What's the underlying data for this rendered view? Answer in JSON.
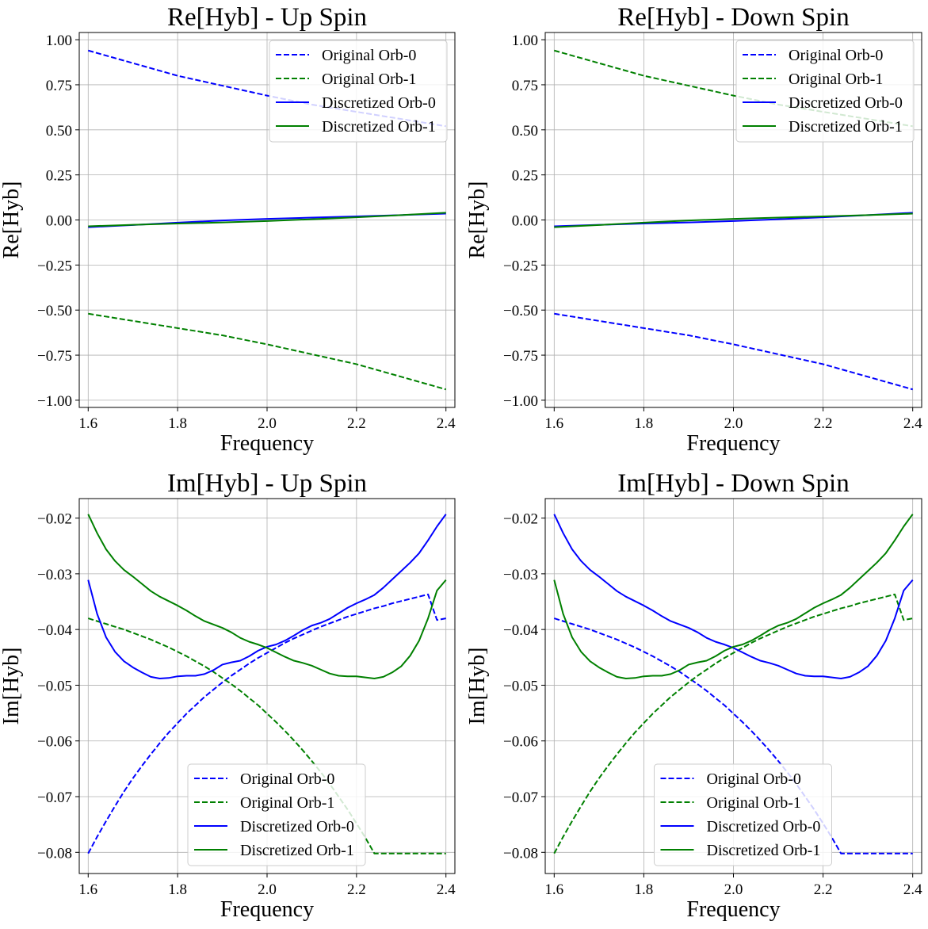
{
  "chart_data": [
    {
      "type": "line",
      "title": "Re[Hyb] - Up Spin",
      "xlabel": "Frequency",
      "ylabel": "Re[Hyb]",
      "xlim": [
        1.58,
        2.42
      ],
      "ylim": [
        -1.04,
        1.04
      ],
      "xticks": [
        1.6,
        1.8,
        2.0,
        2.2,
        2.4
      ],
      "xtick_labels": [
        "1.6",
        "1.8",
        "2.0",
        "2.2",
        "2.4"
      ],
      "yticks": [
        1.0,
        0.75,
        0.5,
        0.25,
        0.0,
        -0.25,
        -0.5,
        -0.75,
        -1.0
      ],
      "ytick_labels": [
        "1.00",
        "0.75",
        "0.50",
        "0.25",
        "0.00",
        "−0.25",
        "−0.50",
        "−0.75",
        "−1.00"
      ],
      "grid": true,
      "legend_position": "top-right",
      "x": [
        1.6,
        1.7,
        1.8,
        1.9,
        2.0,
        2.1,
        2.2,
        2.3,
        2.4
      ],
      "series": [
        {
          "name": "Original Orb-0",
          "color": "#0000ff",
          "dash": true,
          "values": [
            0.94,
            0.87,
            0.8,
            0.745,
            0.69,
            0.64,
            0.6,
            0.56,
            0.52
          ]
        },
        {
          "name": "Original Orb-1",
          "color": "#008000",
          "dash": true,
          "values": [
            -0.52,
            -0.56,
            -0.6,
            -0.64,
            -0.69,
            -0.745,
            -0.8,
            -0.87,
            -0.94
          ]
        },
        {
          "name": "Discretized Orb-0",
          "color": "#0000ff",
          "dash": false,
          "values": [
            -0.04,
            -0.028,
            -0.015,
            -0.003,
            0.006,
            0.013,
            0.02,
            0.027,
            0.035
          ]
        },
        {
          "name": "Discretized Orb-1",
          "color": "#008000",
          "dash": false,
          "values": [
            -0.035,
            -0.027,
            -0.02,
            -0.014,
            -0.006,
            0.004,
            0.015,
            0.027,
            0.04
          ]
        }
      ]
    },
    {
      "type": "line",
      "title": "Re[Hyb] - Down Spin",
      "xlabel": "Frequency",
      "ylabel": "Re[Hyb]",
      "xlim": [
        1.58,
        2.42
      ],
      "ylim": [
        -1.04,
        1.04
      ],
      "xticks": [
        1.6,
        1.8,
        2.0,
        2.2,
        2.4
      ],
      "xtick_labels": [
        "1.6",
        "1.8",
        "2.0",
        "2.2",
        "2.4"
      ],
      "yticks": [
        1.0,
        0.75,
        0.5,
        0.25,
        0.0,
        -0.25,
        -0.5,
        -0.75,
        -1.0
      ],
      "ytick_labels": [
        "1.00",
        "0.75",
        "0.50",
        "0.25",
        "0.00",
        "−0.25",
        "−0.50",
        "−0.75",
        "−1.00"
      ],
      "grid": true,
      "legend_position": "top-right",
      "x": [
        1.6,
        1.7,
        1.8,
        1.9,
        2.0,
        2.1,
        2.2,
        2.3,
        2.4
      ],
      "series": [
        {
          "name": "Original Orb-0",
          "color": "#0000ff",
          "dash": true,
          "values": [
            -0.52,
            -0.56,
            -0.6,
            -0.64,
            -0.69,
            -0.745,
            -0.8,
            -0.87,
            -0.94
          ]
        },
        {
          "name": "Original Orb-1",
          "color": "#008000",
          "dash": true,
          "values": [
            0.94,
            0.87,
            0.8,
            0.745,
            0.69,
            0.64,
            0.6,
            0.56,
            0.52
          ]
        },
        {
          "name": "Discretized Orb-0",
          "color": "#0000ff",
          "dash": false,
          "values": [
            -0.035,
            -0.027,
            -0.02,
            -0.014,
            -0.006,
            0.004,
            0.015,
            0.027,
            0.04
          ]
        },
        {
          "name": "Discretized Orb-1",
          "color": "#008000",
          "dash": false,
          "values": [
            -0.04,
            -0.028,
            -0.015,
            -0.003,
            0.006,
            0.013,
            0.02,
            0.027,
            0.035
          ]
        }
      ]
    },
    {
      "type": "line",
      "title": "Im[Hyb] - Up Spin",
      "xlabel": "Frequency",
      "ylabel": "Im[Hyb]",
      "xlim": [
        1.58,
        2.42
      ],
      "ylim": [
        -0.0838,
        -0.0165
      ],
      "xticks": [
        1.6,
        1.8,
        2.0,
        2.2,
        2.4
      ],
      "xtick_labels": [
        "1.6",
        "1.8",
        "2.0",
        "2.2",
        "2.4"
      ],
      "yticks": [
        -0.02,
        -0.03,
        -0.04,
        -0.05,
        -0.06,
        -0.07,
        -0.08
      ],
      "ytick_labels": [
        "−0.02",
        "−0.03",
        "−0.04",
        "−0.05",
        "−0.06",
        "−0.07",
        "−0.08"
      ],
      "grid": true,
      "legend_position": "lower-center",
      "x": [
        1.6,
        1.62,
        1.64,
        1.66,
        1.68,
        1.7,
        1.72,
        1.74,
        1.76,
        1.78,
        1.8,
        1.82,
        1.84,
        1.86,
        1.88,
        1.9,
        1.92,
        1.94,
        1.96,
        1.98,
        2.0,
        2.02,
        2.04,
        2.06,
        2.08,
        2.1,
        2.12,
        2.14,
        2.16,
        2.18,
        2.2,
        2.22,
        2.24,
        2.26,
        2.28,
        2.3,
        2.32,
        2.34,
        2.36,
        2.38,
        2.4
      ],
      "series": [
        {
          "name": "Original Orb-0",
          "color": "#0000ff",
          "dash": true,
          "values": [
            -0.0802,
            -0.0772,
            -0.0744,
            -0.0717,
            -0.0691,
            -0.0667,
            -0.0645,
            -0.0624,
            -0.0604,
            -0.0585,
            -0.0568,
            -0.0551,
            -0.0536,
            -0.0521,
            -0.0508,
            -0.0495,
            -0.0483,
            -0.0472,
            -0.0461,
            -0.0451,
            -0.0442,
            -0.0433,
            -0.0424,
            -0.0416,
            -0.0409,
            -0.0402,
            -0.0395,
            -0.0389,
            -0.0383,
            -0.0377,
            -0.0372,
            -0.0367,
            -0.0362,
            -0.0358,
            -0.0353,
            -0.0349,
            -0.0345,
            -0.0341,
            -0.0337,
            -0.0383,
            -0.038
          ]
        },
        {
          "name": "Original Orb-1",
          "color": "#008000",
          "dash": true,
          "values": [
            -0.038,
            -0.0385,
            -0.039,
            -0.0395,
            -0.04,
            -0.0406,
            -0.0412,
            -0.0418,
            -0.0425,
            -0.0432,
            -0.044,
            -0.0448,
            -0.0457,
            -0.0466,
            -0.0476,
            -0.0487,
            -0.0498,
            -0.051,
            -0.0523,
            -0.0536,
            -0.0551,
            -0.0566,
            -0.0582,
            -0.0599,
            -0.0617,
            -0.0636,
            -0.0656,
            -0.0677,
            -0.07,
            -0.0723,
            -0.0748,
            -0.0774,
            -0.0802,
            -0.0802,
            -0.0802,
            -0.0802,
            -0.0802,
            -0.0802,
            -0.0802,
            -0.0802,
            -0.0802
          ]
        },
        {
          "name": "Discretized Orb-0",
          "color": "#0000ff",
          "dash": false,
          "values": [
            -0.0311,
            -0.0372,
            -0.0414,
            -0.044,
            -0.0457,
            -0.0468,
            -0.0477,
            -0.0485,
            -0.0488,
            -0.0487,
            -0.0484,
            -0.0483,
            -0.0483,
            -0.048,
            -0.0473,
            -0.0463,
            -0.0459,
            -0.0456,
            -0.0448,
            -0.0438,
            -0.0431,
            -0.0427,
            -0.042,
            -0.0411,
            -0.0401,
            -0.0393,
            -0.0388,
            -0.0381,
            -0.0371,
            -0.0361,
            -0.0353,
            -0.0346,
            -0.0338,
            -0.0325,
            -0.031,
            -0.0295,
            -0.028,
            -0.0263,
            -0.024,
            -0.0215,
            -0.0193
          ]
        },
        {
          "name": "Discretized Orb-1",
          "color": "#008000",
          "dash": false,
          "values": [
            -0.0193,
            -0.0227,
            -0.0256,
            -0.0277,
            -0.0293,
            -0.0305,
            -0.0318,
            -0.0331,
            -0.0341,
            -0.0349,
            -0.0357,
            -0.0366,
            -0.0376,
            -0.0385,
            -0.0391,
            -0.0397,
            -0.0405,
            -0.0415,
            -0.0422,
            -0.0427,
            -0.0433,
            -0.0441,
            -0.0449,
            -0.0456,
            -0.046,
            -0.0465,
            -0.0472,
            -0.0479,
            -0.0483,
            -0.0484,
            -0.0484,
            -0.0486,
            -0.0488,
            -0.0485,
            -0.0477,
            -0.0466,
            -0.0447,
            -0.042,
            -0.038,
            -0.033,
            -0.0311
          ]
        }
      ]
    },
    {
      "type": "line",
      "title": "Im[Hyb] - Down Spin",
      "xlabel": "Frequency",
      "ylabel": "Im[Hyb]",
      "xlim": [
        1.58,
        2.42
      ],
      "ylim": [
        -0.0838,
        -0.0165
      ],
      "xticks": [
        1.6,
        1.8,
        2.0,
        2.2,
        2.4
      ],
      "xtick_labels": [
        "1.6",
        "1.8",
        "2.0",
        "2.2",
        "2.4"
      ],
      "yticks": [
        -0.02,
        -0.03,
        -0.04,
        -0.05,
        -0.06,
        -0.07,
        -0.08
      ],
      "ytick_labels": [
        "−0.02",
        "−0.03",
        "−0.04",
        "−0.05",
        "−0.06",
        "−0.07",
        "−0.08"
      ],
      "grid": true,
      "legend_position": "lower-center",
      "x": [
        1.6,
        1.62,
        1.64,
        1.66,
        1.68,
        1.7,
        1.72,
        1.74,
        1.76,
        1.78,
        1.8,
        1.82,
        1.84,
        1.86,
        1.88,
        1.9,
        1.92,
        1.94,
        1.96,
        1.98,
        2.0,
        2.02,
        2.04,
        2.06,
        2.08,
        2.1,
        2.12,
        2.14,
        2.16,
        2.18,
        2.2,
        2.22,
        2.24,
        2.26,
        2.28,
        2.3,
        2.32,
        2.34,
        2.36,
        2.38,
        2.4
      ],
      "series": [
        {
          "name": "Original Orb-0",
          "color": "#0000ff",
          "dash": true,
          "values": [
            -0.038,
            -0.0385,
            -0.039,
            -0.0395,
            -0.04,
            -0.0406,
            -0.0412,
            -0.0418,
            -0.0425,
            -0.0432,
            -0.044,
            -0.0448,
            -0.0457,
            -0.0466,
            -0.0476,
            -0.0487,
            -0.0498,
            -0.051,
            -0.0523,
            -0.0536,
            -0.0551,
            -0.0566,
            -0.0582,
            -0.0599,
            -0.0617,
            -0.0636,
            -0.0656,
            -0.0677,
            -0.07,
            -0.0723,
            -0.0748,
            -0.0774,
            -0.0802,
            -0.0802,
            -0.0802,
            -0.0802,
            -0.0802,
            -0.0802,
            -0.0802,
            -0.0802,
            -0.0802
          ]
        },
        {
          "name": "Original Orb-1",
          "color": "#008000",
          "dash": true,
          "values": [
            -0.0802,
            -0.0772,
            -0.0744,
            -0.0717,
            -0.0691,
            -0.0667,
            -0.0645,
            -0.0624,
            -0.0604,
            -0.0585,
            -0.0568,
            -0.0551,
            -0.0536,
            -0.0521,
            -0.0508,
            -0.0495,
            -0.0483,
            -0.0472,
            -0.0461,
            -0.0451,
            -0.0442,
            -0.0433,
            -0.0424,
            -0.0416,
            -0.0409,
            -0.0402,
            -0.0395,
            -0.0389,
            -0.0383,
            -0.0377,
            -0.0372,
            -0.0367,
            -0.0362,
            -0.0358,
            -0.0353,
            -0.0349,
            -0.0345,
            -0.0341,
            -0.0337,
            -0.0383,
            -0.038
          ]
        },
        {
          "name": "Discretized Orb-0",
          "color": "#0000ff",
          "dash": false,
          "values": [
            -0.0193,
            -0.0227,
            -0.0256,
            -0.0277,
            -0.0293,
            -0.0305,
            -0.0318,
            -0.0331,
            -0.0341,
            -0.0349,
            -0.0357,
            -0.0366,
            -0.0376,
            -0.0385,
            -0.0391,
            -0.0397,
            -0.0405,
            -0.0415,
            -0.0422,
            -0.0427,
            -0.0433,
            -0.0441,
            -0.0449,
            -0.0456,
            -0.046,
            -0.0465,
            -0.0472,
            -0.0479,
            -0.0483,
            -0.0484,
            -0.0484,
            -0.0486,
            -0.0488,
            -0.0485,
            -0.0477,
            -0.0466,
            -0.0447,
            -0.042,
            -0.038,
            -0.033,
            -0.0311
          ]
        },
        {
          "name": "Discretized Orb-1",
          "color": "#008000",
          "dash": false,
          "values": [
            -0.0311,
            -0.0372,
            -0.0414,
            -0.044,
            -0.0457,
            -0.0468,
            -0.0477,
            -0.0485,
            -0.0488,
            -0.0487,
            -0.0484,
            -0.0483,
            -0.0483,
            -0.048,
            -0.0473,
            -0.0463,
            -0.0459,
            -0.0456,
            -0.0448,
            -0.0438,
            -0.0431,
            -0.0427,
            -0.042,
            -0.0411,
            -0.0401,
            -0.0393,
            -0.0388,
            -0.0381,
            -0.0371,
            -0.0361,
            -0.0353,
            -0.0346,
            -0.0338,
            -0.0325,
            -0.031,
            -0.0295,
            -0.028,
            -0.0263,
            -0.024,
            -0.0215,
            -0.0193
          ]
        }
      ]
    }
  ]
}
